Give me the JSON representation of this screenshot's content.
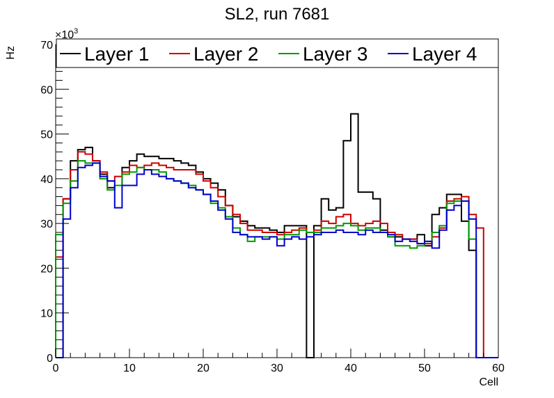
{
  "chart_data": {
    "type": "line",
    "title": "SL2, run 7681",
    "xlabel": "Cell",
    "ylabel": "Hz",
    "y_multiplier_label": "×10",
    "y_multiplier_exp": "3",
    "xlim": [
      0,
      60
    ],
    "ylim": [
      0,
      70
    ],
    "x_ticks": [
      0,
      10,
      20,
      30,
      40,
      50,
      60
    ],
    "y_ticks": [
      0,
      10,
      20,
      30,
      40,
      50,
      60,
      70
    ],
    "grid": false,
    "legend_position": "top",
    "bin_edges_start": 0,
    "bin_width": 1,
    "series": [
      {
        "name": "Layer 1",
        "color": "#000000",
        "values": [
          0,
          35.5,
          44,
          46.5,
          47,
          44,
          41,
          38,
          38.5,
          42.5,
          44,
          45.5,
          45,
          45,
          44.5,
          44.5,
          44,
          43.5,
          43,
          41.5,
          40,
          39,
          37.5,
          34,
          31.5,
          30.5,
          29.5,
          29,
          29,
          28.5,
          28,
          29.5,
          29.5,
          29.5,
          0,
          29.5,
          35.5,
          33,
          33.5,
          48.5,
          54.5,
          37,
          37,
          35.5,
          28.5,
          27,
          27,
          26.5,
          26.5,
          27.5,
          25,
          32,
          33.5,
          36.5,
          36.5,
          30.5,
          24,
          0,
          0,
          0
        ]
      },
      {
        "name": "Layer 2",
        "color": "#cc0000",
        "values": [
          22.5,
          35.5,
          42,
          46,
          45.5,
          44,
          41.5,
          39.5,
          40.5,
          41.5,
          43,
          42.5,
          43,
          43.5,
          43,
          42.5,
          42,
          42,
          42,
          41,
          39.5,
          38,
          36,
          34,
          32,
          30,
          28.5,
          28.5,
          28,
          28,
          27.5,
          28,
          28.5,
          29,
          28,
          28.5,
          30.5,
          30,
          31.5,
          32,
          30,
          29.5,
          30,
          30.5,
          30,
          28,
          27.5,
          26.5,
          26.5,
          25.5,
          25.5,
          27,
          29,
          35,
          35.5,
          36,
          32,
          29,
          0,
          0
        ]
      },
      {
        "name": "Layer 3",
        "color": "#009900",
        "values": [
          27.5,
          34.5,
          39.5,
          44,
          43.5,
          43.5,
          40,
          37.5,
          38.5,
          41,
          41.5,
          42.5,
          42,
          42,
          41.5,
          40,
          39.5,
          39,
          38.5,
          37.5,
          36.5,
          34.5,
          33.5,
          31.5,
          29,
          27.5,
          26,
          27,
          27,
          27,
          26.5,
          27.5,
          27.5,
          28.5,
          28,
          28,
          29,
          29,
          29.5,
          30,
          29.5,
          28.5,
          29,
          29,
          28,
          27,
          25,
          25,
          24.5,
          25,
          26,
          28,
          29.5,
          34.5,
          35,
          35,
          26.5,
          0,
          0,
          0
        ]
      },
      {
        "name": "Layer 4",
        "color": "#0000cc",
        "values": [
          0,
          31,
          38,
          42.5,
          43,
          43.5,
          40.5,
          39.5,
          33.5,
          38.5,
          38.5,
          41,
          42,
          41,
          40.5,
          40,
          39.5,
          39,
          38,
          37.5,
          36.5,
          35,
          33,
          31,
          28,
          27.5,
          27,
          27,
          26.5,
          27,
          25,
          26.5,
          27,
          26.5,
          27,
          27.5,
          28,
          28,
          28.5,
          28,
          28,
          27.5,
          28.5,
          28,
          28,
          27.5,
          26,
          26.5,
          26,
          25.5,
          26,
          24.5,
          28.5,
          33,
          34,
          35,
          31,
          0,
          0,
          0
        ]
      }
    ]
  }
}
